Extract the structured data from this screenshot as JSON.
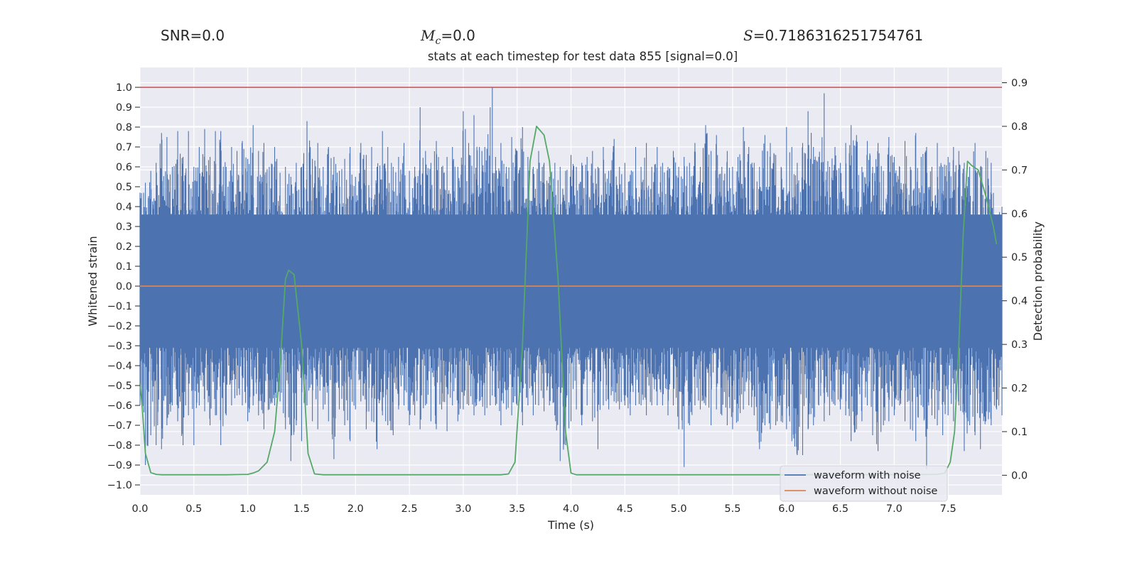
{
  "header": {
    "snr_text": "SNR=0.0",
    "mc_symbol": "M",
    "mc_subscript": "c",
    "mc_value": "=0.0",
    "s_symbol": "S",
    "s_value": "=0.7186316251754761"
  },
  "chart_data": {
    "type": "line",
    "title": "stats at each timestep for test data 855 [signal=0.0]",
    "xlabel": "Time (s)",
    "ylabel": "Whitened strain",
    "ylabel_right": "Detection probability",
    "xlim": [
      0.0,
      8.0
    ],
    "ylim": [
      -1.05,
      1.1
    ],
    "ylim_right": [
      -0.045,
      0.935
    ],
    "x_ticks": [
      0.0,
      0.5,
      1.0,
      1.5,
      2.0,
      2.5,
      3.0,
      3.5,
      4.0,
      4.5,
      5.0,
      5.5,
      6.0,
      6.5,
      7.0,
      7.5
    ],
    "x_tick_labels": [
      "0.0",
      "0.5",
      "1.0",
      "1.5",
      "2.0",
      "2.5",
      "3.0",
      "3.5",
      "4.0",
      "4.5",
      "5.0",
      "5.5",
      "6.0",
      "6.5",
      "7.0",
      "7.5"
    ],
    "y_ticks": [
      -1.0,
      -0.9,
      -0.8,
      -0.7,
      -0.6,
      -0.5,
      -0.4,
      -0.3,
      -0.2,
      -0.1,
      0.0,
      0.1,
      0.2,
      0.3,
      0.4,
      0.5,
      0.6,
      0.7,
      0.8,
      0.9,
      1.0
    ],
    "y_tick_labels": [
      "−1.0",
      "−0.9",
      "−0.8",
      "−0.7",
      "−0.6",
      "−0.5",
      "−0.4",
      "−0.3",
      "−0.2",
      "−0.1",
      "0.0",
      "0.1",
      "0.2",
      "0.3",
      "0.4",
      "0.5",
      "0.6",
      "0.7",
      "0.8",
      "0.9",
      "1.0"
    ],
    "y_right_ticks": [
      0.0,
      0.1,
      0.2,
      0.3,
      0.4,
      0.5,
      0.6,
      0.7,
      0.8,
      0.9
    ],
    "y_right_tick_labels": [
      "0.0",
      "0.1",
      "0.2",
      "0.3",
      "0.4",
      "0.5",
      "0.6",
      "0.7",
      "0.8",
      "0.9"
    ],
    "grid": true,
    "legend_position": "lower-right",
    "threshold_line": {
      "y": 1.0,
      "color": "#c44e52"
    },
    "series": [
      {
        "name": "waveform with noise",
        "color": "#4c72b0",
        "axis": "left",
        "envelope_points": [
          [
            0.0,
            0.47,
            -0.6
          ],
          [
            0.05,
            0.52,
            -0.9
          ],
          [
            0.1,
            0.58,
            -0.75
          ],
          [
            0.15,
            0.62,
            -0.8
          ],
          [
            0.2,
            0.77,
            -0.82
          ],
          [
            0.25,
            0.75,
            -0.7
          ],
          [
            0.3,
            0.6,
            -0.6
          ],
          [
            0.35,
            0.78,
            -0.68
          ],
          [
            0.4,
            0.65,
            -0.8
          ],
          [
            0.45,
            0.78,
            -0.65
          ],
          [
            0.5,
            0.6,
            -0.8
          ],
          [
            0.55,
            0.7,
            -0.6
          ],
          [
            0.6,
            0.79,
            -0.63
          ],
          [
            0.65,
            0.65,
            -0.7
          ],
          [
            0.7,
            0.78,
            -0.65
          ],
          [
            0.75,
            0.78,
            -0.8
          ],
          [
            0.8,
            0.6,
            -0.65
          ],
          [
            0.85,
            0.7,
            -0.6
          ],
          [
            0.9,
            0.68,
            -0.55
          ],
          [
            0.95,
            0.73,
            -0.6
          ],
          [
            1.0,
            0.64,
            -0.68
          ],
          [
            1.05,
            0.81,
            -0.6
          ],
          [
            1.1,
            0.68,
            -0.65
          ],
          [
            1.15,
            0.72,
            -0.72
          ],
          [
            1.2,
            0.6,
            -0.62
          ],
          [
            1.25,
            0.7,
            -0.6
          ],
          [
            1.3,
            0.57,
            -0.58
          ],
          [
            1.35,
            0.6,
            -0.72
          ],
          [
            1.4,
            0.55,
            -0.88
          ],
          [
            1.45,
            0.62,
            -0.7
          ],
          [
            1.5,
            0.6,
            -0.78
          ],
          [
            1.55,
            0.83,
            -0.6
          ],
          [
            1.6,
            0.64,
            -0.68
          ],
          [
            1.65,
            0.72,
            -0.72
          ],
          [
            1.7,
            0.6,
            -0.62
          ],
          [
            1.75,
            0.7,
            -0.68
          ],
          [
            1.8,
            0.65,
            -0.87
          ],
          [
            1.85,
            0.58,
            -0.62
          ],
          [
            1.9,
            0.64,
            -0.7
          ],
          [
            1.95,
            0.7,
            -0.78
          ],
          [
            2.0,
            0.55,
            -0.62
          ],
          [
            2.05,
            0.72,
            -0.58
          ],
          [
            2.1,
            0.66,
            -0.72
          ],
          [
            2.15,
            0.7,
            -0.68
          ],
          [
            2.2,
            0.6,
            -0.82
          ],
          [
            2.25,
            0.78,
            -0.65
          ],
          [
            2.3,
            0.7,
            -0.7
          ],
          [
            2.35,
            0.6,
            -0.75
          ],
          [
            2.4,
            0.65,
            -0.62
          ],
          [
            2.45,
            0.72,
            -0.6
          ],
          [
            2.5,
            0.58,
            -0.7
          ],
          [
            2.55,
            0.6,
            -0.65
          ],
          [
            2.6,
            0.9,
            -0.72
          ],
          [
            2.65,
            0.68,
            -0.6
          ],
          [
            2.7,
            0.62,
            -0.68
          ],
          [
            2.75,
            0.73,
            -0.72
          ],
          [
            2.8,
            0.6,
            -0.62
          ],
          [
            2.85,
            0.65,
            -0.73
          ],
          [
            2.9,
            0.7,
            -0.6
          ],
          [
            2.95,
            0.6,
            -0.68
          ],
          [
            3.0,
            0.88,
            -0.62
          ],
          [
            3.05,
            0.72,
            -0.6
          ],
          [
            3.1,
            0.86,
            -0.65
          ],
          [
            3.15,
            0.7,
            -0.58
          ],
          [
            3.2,
            0.7,
            -0.65
          ],
          [
            3.25,
            0.9,
            -0.6
          ],
          [
            3.27,
            1.0,
            -0.55
          ],
          [
            3.3,
            0.65,
            -0.6
          ],
          [
            3.35,
            0.72,
            -0.7
          ],
          [
            3.4,
            0.6,
            -0.62
          ],
          [
            3.45,
            0.75,
            -0.65
          ],
          [
            3.5,
            0.68,
            -0.6
          ],
          [
            3.55,
            0.8,
            -0.7
          ],
          [
            3.6,
            0.65,
            -0.6
          ],
          [
            3.65,
            0.6,
            -0.65
          ],
          [
            3.7,
            0.68,
            -0.6
          ],
          [
            3.75,
            0.62,
            -0.63
          ],
          [
            3.8,
            0.55,
            -0.6
          ],
          [
            3.85,
            0.62,
            -0.65
          ],
          [
            3.9,
            0.6,
            -0.88
          ],
          [
            3.95,
            0.58,
            -0.8
          ],
          [
            4.0,
            0.66,
            -0.68
          ],
          [
            4.05,
            0.6,
            -0.62
          ],
          [
            4.1,
            0.62,
            -0.7
          ],
          [
            4.15,
            0.65,
            -0.6
          ],
          [
            4.2,
            0.68,
            -0.68
          ],
          [
            4.25,
            0.6,
            -0.82
          ],
          [
            4.3,
            0.7,
            -0.6
          ],
          [
            4.35,
            0.58,
            -0.62
          ],
          [
            4.4,
            0.74,
            -0.58
          ],
          [
            4.45,
            0.6,
            -0.62
          ],
          [
            4.5,
            0.62,
            -0.6
          ],
          [
            4.55,
            0.56,
            -0.65
          ],
          [
            4.6,
            0.7,
            -0.6
          ],
          [
            4.65,
            0.6,
            -0.6
          ],
          [
            4.7,
            0.72,
            -0.65
          ],
          [
            4.75,
            0.6,
            -0.6
          ],
          [
            4.8,
            0.7,
            -0.6
          ],
          [
            4.85,
            0.62,
            -0.6
          ],
          [
            4.9,
            0.6,
            -0.65
          ],
          [
            4.95,
            0.68,
            -0.6
          ],
          [
            5.0,
            0.6,
            -0.72
          ],
          [
            5.05,
            0.65,
            -0.91
          ],
          [
            5.1,
            0.62,
            -0.7
          ],
          [
            5.15,
            0.72,
            -0.6
          ],
          [
            5.2,
            0.6,
            -0.62
          ],
          [
            5.25,
            0.81,
            -0.6
          ],
          [
            5.3,
            0.68,
            -0.7
          ],
          [
            5.35,
            0.76,
            -0.62
          ],
          [
            5.4,
            0.6,
            -0.65
          ],
          [
            5.45,
            0.68,
            -0.7
          ],
          [
            5.5,
            0.6,
            -0.72
          ],
          [
            5.55,
            0.65,
            -0.68
          ],
          [
            5.6,
            0.8,
            -0.62
          ],
          [
            5.65,
            0.7,
            -0.6
          ],
          [
            5.7,
            0.62,
            -0.65
          ],
          [
            5.75,
            0.6,
            -0.82
          ],
          [
            5.8,
            0.76,
            -0.7
          ],
          [
            5.85,
            0.72,
            -0.72
          ],
          [
            5.9,
            0.66,
            -0.7
          ],
          [
            5.95,
            0.6,
            -0.68
          ],
          [
            6.0,
            0.8,
            -0.72
          ],
          [
            6.05,
            0.7,
            -0.78
          ],
          [
            6.1,
            0.62,
            -0.85
          ],
          [
            6.15,
            0.72,
            -0.85
          ],
          [
            6.2,
            0.88,
            -0.72
          ],
          [
            6.25,
            0.7,
            -0.7
          ],
          [
            6.3,
            0.65,
            -0.6
          ],
          [
            6.35,
            0.97,
            -0.68
          ],
          [
            6.4,
            0.6,
            -0.65
          ],
          [
            6.45,
            0.7,
            -0.6
          ],
          [
            6.5,
            0.62,
            -0.62
          ],
          [
            6.55,
            0.72,
            -0.65
          ],
          [
            6.6,
            0.81,
            -0.78
          ],
          [
            6.65,
            0.76,
            -0.72
          ],
          [
            6.7,
            0.6,
            -0.68
          ],
          [
            6.75,
            0.73,
            -0.6
          ],
          [
            6.8,
            0.6,
            -0.75
          ],
          [
            6.85,
            0.72,
            -0.83
          ],
          [
            6.9,
            0.58,
            -0.7
          ],
          [
            6.95,
            0.75,
            -0.68
          ],
          [
            7.0,
            0.65,
            -0.65
          ],
          [
            7.05,
            0.6,
            -0.6
          ],
          [
            7.1,
            0.73,
            -0.68
          ],
          [
            7.15,
            0.6,
            -0.72
          ],
          [
            7.2,
            0.77,
            -0.78
          ],
          [
            7.25,
            0.65,
            -0.6
          ],
          [
            7.3,
            0.7,
            -0.92
          ],
          [
            7.35,
            0.6,
            -0.65
          ],
          [
            7.4,
            0.72,
            -0.7
          ],
          [
            7.45,
            0.6,
            -0.75
          ],
          [
            7.5,
            0.65,
            -0.65
          ],
          [
            7.55,
            0.7,
            -0.68
          ],
          [
            7.6,
            0.68,
            -0.6
          ],
          [
            7.65,
            0.62,
            -0.83
          ],
          [
            7.7,
            0.6,
            -0.7
          ],
          [
            7.75,
            0.72,
            -0.75
          ],
          [
            7.8,
            0.6,
            -0.82
          ],
          [
            7.85,
            0.68,
            -0.68
          ],
          [
            7.9,
            0.62,
            -0.7
          ],
          [
            7.95,
            0.35,
            -0.62
          ],
          [
            8.0,
            0.4,
            -0.65
          ]
        ]
      },
      {
        "name": "waveform without noise",
        "color": "#dd8452",
        "axis": "left",
        "x": [
          0.0,
          8.0
        ],
        "y": [
          0.0,
          0.0
        ]
      },
      {
        "name": "",
        "color": "#55a868",
        "axis": "right",
        "x": [
          0.0,
          0.02,
          0.05,
          0.1,
          0.15,
          0.2,
          0.3,
          0.5,
          0.8,
          1.0,
          1.05,
          1.1,
          1.18,
          1.25,
          1.3,
          1.35,
          1.38,
          1.43,
          1.5,
          1.56,
          1.62,
          1.7,
          2.0,
          2.5,
          3.0,
          3.35,
          3.42,
          3.48,
          3.55,
          3.62,
          3.68,
          3.75,
          3.8,
          3.88,
          3.95,
          4.0,
          4.05,
          4.2,
          5.0,
          6.0,
          7.0,
          7.4,
          7.47,
          7.52,
          7.56,
          7.6,
          7.64,
          7.68,
          7.72,
          7.78,
          7.85,
          7.92,
          7.95
        ],
        "y": [
          0.21,
          0.16,
          0.05,
          0.006,
          0.002,
          0.001,
          0.001,
          0.001,
          0.001,
          0.002,
          0.005,
          0.01,
          0.03,
          0.1,
          0.25,
          0.45,
          0.47,
          0.46,
          0.3,
          0.05,
          0.003,
          0.001,
          0.001,
          0.001,
          0.001,
          0.001,
          0.003,
          0.03,
          0.3,
          0.72,
          0.8,
          0.78,
          0.72,
          0.45,
          0.1,
          0.005,
          0.001,
          0.001,
          0.001,
          0.001,
          0.001,
          0.002,
          0.005,
          0.03,
          0.1,
          0.3,
          0.55,
          0.72,
          0.71,
          0.7,
          0.64,
          0.57,
          0.53
        ]
      }
    ],
    "legend": [
      {
        "label": "waveform with noise",
        "color": "#4c72b0"
      },
      {
        "label": "waveform without noise",
        "color": "#dd8452"
      }
    ]
  }
}
